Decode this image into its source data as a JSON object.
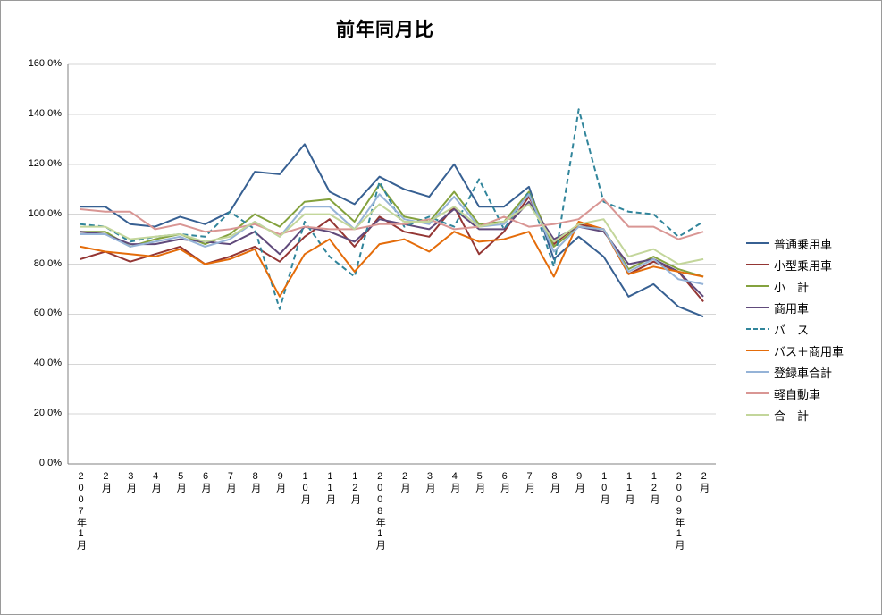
{
  "chart_data": {
    "type": "line",
    "title": "前年同月比",
    "xlabel": "",
    "ylabel": "",
    "ylim": [
      0,
      160
    ],
    "ytick_step": 20,
    "ytick_format_suffix": "%",
    "grid": true,
    "legend_position": "right",
    "categories": [
      "2007年1月",
      "2月",
      "3月",
      "4月",
      "5月",
      "6月",
      "7月",
      "8月",
      "9月",
      "10月",
      "11月",
      "12月",
      "2008年1月",
      "2月",
      "3月",
      "4月",
      "5月",
      "6月",
      "7月",
      "8月",
      "9月",
      "10月",
      "11月",
      "12月",
      "2009年1月",
      "2月"
    ],
    "series": [
      {
        "id": "ordinary-passenger-car",
        "name": "普通乗用車",
        "color": "#376092",
        "dashed": false,
        "values": [
          103,
          103,
          96,
          95,
          99,
          96,
          101,
          117,
          116,
          128,
          109,
          104,
          115,
          110,
          107,
          120,
          103,
          103,
          111,
          82,
          91,
          83,
          67,
          72,
          63,
          59
        ]
      },
      {
        "id": "small-passenger-car",
        "name": "小型乗用車",
        "color": "#943634",
        "dashed": false,
        "values": [
          82,
          85,
          81,
          84,
          87,
          80,
          83,
          87,
          81,
          91,
          98,
          87,
          99,
          93,
          91,
          103,
          84,
          93,
          107,
          88,
          96,
          94,
          76,
          81,
          77,
          65
        ]
      },
      {
        "id": "subtotal",
        "name": "小　計",
        "color": "#84A23E",
        "dashed": false,
        "values": [
          93,
          93,
          87,
          90,
          92,
          88,
          92,
          100,
          95,
          105,
          106,
          97,
          112,
          99,
          97,
          109,
          96,
          97,
          109,
          87,
          95,
          94,
          78,
          83,
          78,
          75
        ]
      },
      {
        "id": "commercial-vehicle",
        "name": "商用車",
        "color": "#604A7B",
        "dashed": false,
        "values": [
          93,
          92,
          88,
          88,
          90,
          89,
          88,
          93,
          84,
          95,
          93,
          89,
          98,
          96,
          94,
          102,
          94,
          94,
          105,
          90,
          95,
          93,
          80,
          82,
          77,
          67
        ]
      },
      {
        "id": "bus",
        "name": "バ　ス",
        "color": "#31859B",
        "dashed": true,
        "values": [
          96,
          95,
          89,
          91,
          92,
          91,
          101,
          94,
          62,
          97,
          83,
          75,
          113,
          95,
          99,
          95,
          114,
          94,
          109,
          79,
          142,
          105,
          101,
          100,
          91,
          97
        ]
      },
      {
        "id": "bus-plus-commercial",
        "name": "バス＋商用車",
        "color": "#E46C0A",
        "dashed": false,
        "values": [
          87,
          85,
          84,
          83,
          86,
          80,
          82,
          86,
          67,
          84,
          90,
          77,
          88,
          90,
          85,
          93,
          89,
          90,
          93,
          75,
          97,
          94,
          76,
          79,
          77,
          75
        ]
      },
      {
        "id": "registered-total",
        "name": "登録車合計",
        "color": "#95B3D7",
        "dashed": false,
        "values": [
          92,
          92,
          87,
          89,
          91,
          87,
          90,
          97,
          91,
          103,
          103,
          94,
          108,
          98,
          96,
          107,
          95,
          96,
          108,
          85,
          95,
          94,
          77,
          82,
          74,
          72
        ]
      },
      {
        "id": "kei-car",
        "name": "軽自動車",
        "color": "#D99694",
        "dashed": false,
        "values": [
          102,
          101,
          101,
          94,
          96,
          93,
          94,
          96,
          92,
          95,
          94,
          94,
          96,
          96,
          98,
          94,
          95,
          99,
          95,
          96,
          98,
          106,
          95,
          95,
          90,
          93
        ]
      },
      {
        "id": "total",
        "name": "合　計",
        "color": "#C3D69B",
        "dashed": false,
        "values": [
          95,
          95,
          90,
          91,
          92,
          89,
          91,
          97,
          91,
          100,
          100,
          94,
          104,
          97,
          97,
          103,
          95,
          97,
          104,
          89,
          96,
          98,
          83,
          86,
          80,
          82
        ]
      }
    ]
  }
}
